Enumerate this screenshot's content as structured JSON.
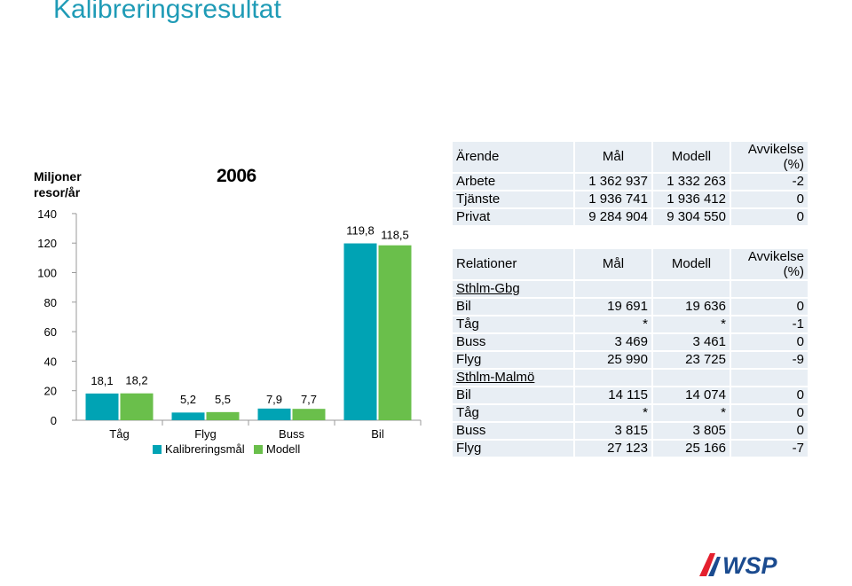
{
  "title": "Kalibreringsresultat",
  "chart_data": {
    "type": "bar",
    "title": "2006",
    "ylabel": "Miljoner resor/år",
    "ylim": [
      0,
      140
    ],
    "yticks": [
      "0",
      "20",
      "40",
      "60",
      "80",
      "100",
      "120",
      "140"
    ],
    "categories": [
      "Tåg",
      "Flyg",
      "Buss",
      "Bil"
    ],
    "series": [
      {
        "name": "Kalibreringsmål",
        "values": [
          18.1,
          5.2,
          7.9,
          119.8
        ],
        "labels": [
          "18,1",
          "5,2",
          "7,9",
          "119,8"
        ],
        "color": "#00a3b4"
      },
      {
        "name": "Modell",
        "values": [
          18.2,
          5.5,
          7.7,
          118.5
        ],
        "labels": [
          "18,2",
          "5,5",
          "7,7",
          "118,5"
        ],
        "color": "#6abf4b"
      }
    ],
    "legend": "bottom",
    "grid": false
  },
  "table1": {
    "header": [
      "Ärende",
      "Mål",
      "Modell",
      "Avvikelse",
      "(%)"
    ],
    "rows": [
      [
        "Arbete",
        "1 362 937",
        "1 332 263",
        "-2"
      ],
      [
        "Tjänste",
        "1 936 741",
        "1 936 412",
        "0"
      ],
      [
        "Privat",
        "9 284 904",
        "9 304 550",
        "0"
      ]
    ]
  },
  "table2": {
    "header": [
      "Relationer",
      "Mål",
      "Modell",
      "Avvikelse",
      "(%)"
    ],
    "group1": "Sthlm-Gbg",
    "rows1": [
      [
        "Bil",
        "19 691",
        "19 636",
        "0"
      ],
      [
        "Tåg",
        "*",
        "*",
        "-1"
      ],
      [
        "Buss",
        "3 469",
        "3 461",
        "0"
      ],
      [
        "Flyg",
        "25 990",
        "23 725",
        "-9"
      ]
    ],
    "group2": "Sthlm-Malmö",
    "rows2": [
      [
        "Bil",
        "14 115",
        "14 074",
        "0"
      ],
      [
        "Tåg",
        "*",
        "*",
        "0"
      ],
      [
        "Buss",
        "3 815",
        "3 805",
        "0"
      ],
      [
        "Flyg",
        "27 123",
        "25 166",
        "-7"
      ]
    ]
  },
  "logo": {
    "text": "WSP",
    "color": "#1b4b8f",
    "accent": "#e4202e"
  }
}
